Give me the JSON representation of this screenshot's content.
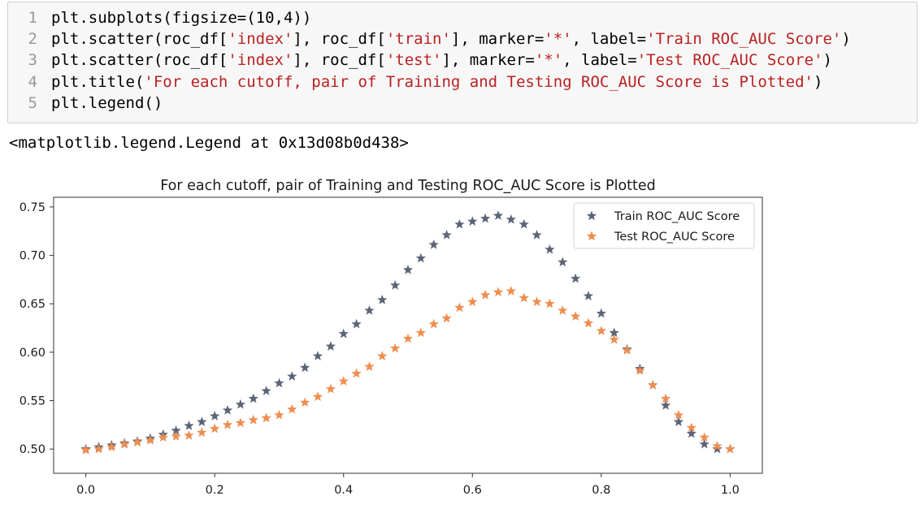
{
  "code_cell": {
    "lines": [
      {
        "num": "1",
        "parts": [
          {
            "t": "plt.subplots(figsize=(10,4))",
            "s": false
          }
        ]
      },
      {
        "num": "2",
        "parts": [
          {
            "t": "plt.scatter(roc_df[",
            "s": false
          },
          {
            "t": "'index'",
            "s": true
          },
          {
            "t": "], roc_df[",
            "s": false
          },
          {
            "t": "'train'",
            "s": true
          },
          {
            "t": "], marker=",
            "s": false
          },
          {
            "t": "'*'",
            "s": true
          },
          {
            "t": ", label=",
            "s": false
          },
          {
            "t": "'Train ROC_AUC Score'",
            "s": true
          },
          {
            "t": ")",
            "s": false
          }
        ]
      },
      {
        "num": "3",
        "parts": [
          {
            "t": "plt.scatter(roc_df[",
            "s": false
          },
          {
            "t": "'index'",
            "s": true
          },
          {
            "t": "], roc_df[",
            "s": false
          },
          {
            "t": "'test'",
            "s": true
          },
          {
            "t": "], marker=",
            "s": false
          },
          {
            "t": "'*'",
            "s": true
          },
          {
            "t": ", label=",
            "s": false
          },
          {
            "t": "'Test ROC_AUC Score'",
            "s": true
          },
          {
            "t": ")",
            "s": false
          }
        ]
      },
      {
        "num": "4",
        "parts": [
          {
            "t": "plt.title(",
            "s": false
          },
          {
            "t": "'For each cutoff, pair of Training and Testing ROC_AUC Score is Plotted'",
            "s": true
          },
          {
            "t": ")",
            "s": false
          }
        ]
      },
      {
        "num": "5",
        "parts": [
          {
            "t": "plt.legend()",
            "s": false
          }
        ]
      }
    ]
  },
  "output": {
    "text": "<matplotlib.legend.Legend at 0x13d08b0d438>"
  },
  "colors": {
    "train": "#5b6577",
    "test": "#ef8d4f",
    "string": "#ba2121"
  },
  "chart_data": {
    "type": "scatter",
    "title": "For each cutoff, pair of Training and Testing ROC_AUC Score is Plotted",
    "xlabel": "",
    "ylabel": "",
    "xlim": [
      -0.05,
      1.05
    ],
    "ylim": [
      0.475,
      0.76
    ],
    "xticks": [
      "0.0",
      "0.2",
      "0.4",
      "0.6",
      "0.8",
      "1.0"
    ],
    "yticks": [
      "0.50",
      "0.55",
      "0.60",
      "0.65",
      "0.70",
      "0.75"
    ],
    "legend_position": "top-right",
    "marker": "*",
    "series": [
      {
        "name": "Train ROC_AUC Score",
        "x": [
          0.0,
          0.02,
          0.04,
          0.06,
          0.08,
          0.1,
          0.12,
          0.14,
          0.16,
          0.18,
          0.2,
          0.22,
          0.24,
          0.26,
          0.28,
          0.3,
          0.32,
          0.34,
          0.36,
          0.38,
          0.4,
          0.42,
          0.44,
          0.46,
          0.48,
          0.5,
          0.52,
          0.54,
          0.56,
          0.58,
          0.6,
          0.62,
          0.64,
          0.66,
          0.68,
          0.7,
          0.72,
          0.74,
          0.76,
          0.78,
          0.8,
          0.82,
          0.84,
          0.86,
          0.88,
          0.9,
          0.92,
          0.94,
          0.96,
          0.98,
          1.0
        ],
        "y": [
          0.5,
          0.502,
          0.504,
          0.506,
          0.508,
          0.511,
          0.515,
          0.519,
          0.524,
          0.528,
          0.534,
          0.54,
          0.546,
          0.552,
          0.56,
          0.568,
          0.575,
          0.584,
          0.596,
          0.606,
          0.619,
          0.629,
          0.643,
          0.654,
          0.669,
          0.685,
          0.697,
          0.711,
          0.721,
          0.732,
          0.735,
          0.738,
          0.741,
          0.737,
          0.732,
          0.721,
          0.706,
          0.693,
          0.676,
          0.658,
          0.64,
          0.62,
          0.603,
          0.583,
          0.566,
          0.545,
          0.528,
          0.516,
          0.505,
          0.5,
          0.5
        ]
      },
      {
        "name": "Test ROC_AUC Score",
        "x": [
          0.0,
          0.02,
          0.04,
          0.06,
          0.08,
          0.1,
          0.12,
          0.14,
          0.16,
          0.18,
          0.2,
          0.22,
          0.24,
          0.26,
          0.28,
          0.3,
          0.32,
          0.34,
          0.36,
          0.38,
          0.4,
          0.42,
          0.44,
          0.46,
          0.48,
          0.5,
          0.52,
          0.54,
          0.56,
          0.58,
          0.6,
          0.62,
          0.64,
          0.66,
          0.68,
          0.7,
          0.72,
          0.74,
          0.76,
          0.78,
          0.8,
          0.82,
          0.84,
          0.86,
          0.88,
          0.9,
          0.92,
          0.94,
          0.96,
          0.98,
          1.0
        ],
        "y": [
          0.499,
          0.5,
          0.502,
          0.505,
          0.507,
          0.509,
          0.512,
          0.513,
          0.514,
          0.517,
          0.521,
          0.525,
          0.527,
          0.53,
          0.532,
          0.535,
          0.541,
          0.548,
          0.554,
          0.562,
          0.57,
          0.578,
          0.585,
          0.596,
          0.604,
          0.614,
          0.62,
          0.629,
          0.635,
          0.646,
          0.652,
          0.659,
          0.662,
          0.663,
          0.656,
          0.652,
          0.65,
          0.643,
          0.637,
          0.63,
          0.622,
          0.613,
          0.602,
          0.581,
          0.566,
          0.552,
          0.535,
          0.522,
          0.512,
          0.503,
          0.5
        ]
      }
    ]
  }
}
